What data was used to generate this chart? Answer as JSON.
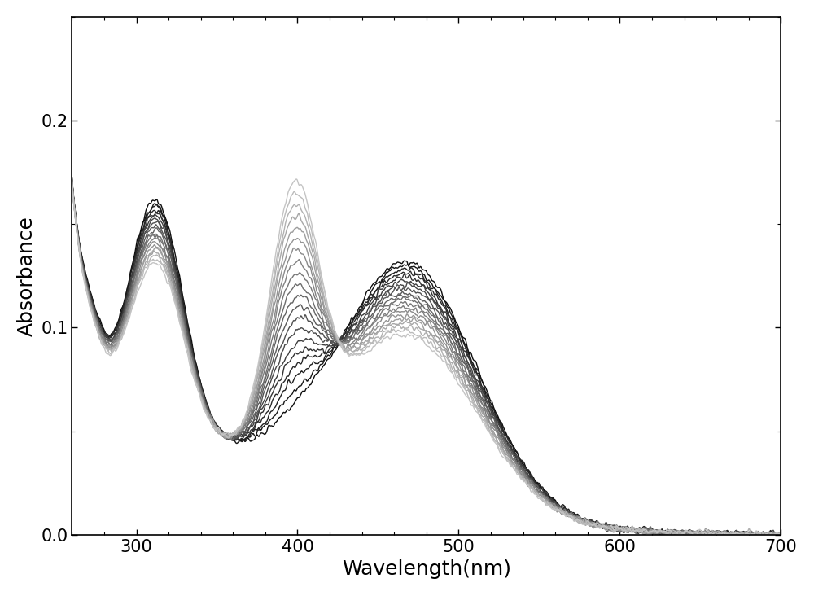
{
  "xlabel": "Wavelength(nm)",
  "ylabel": "Absorbance",
  "xlim": [
    260,
    700
  ],
  "ylim": [
    0.0,
    0.25
  ],
  "yticks": [
    0.0,
    0.1,
    0.2
  ],
  "xticks": [
    300,
    400,
    500,
    600,
    700
  ],
  "n_curves": 20,
  "figsize": [
    10.0,
    7.32
  ],
  "dpi": 100,
  "background_color": "#ffffff",
  "spine_color": "#000000",
  "xlabel_fontsize": 18,
  "ylabel_fontsize": 18,
  "tick_fontsize": 15,
  "linewidth": 1.0
}
